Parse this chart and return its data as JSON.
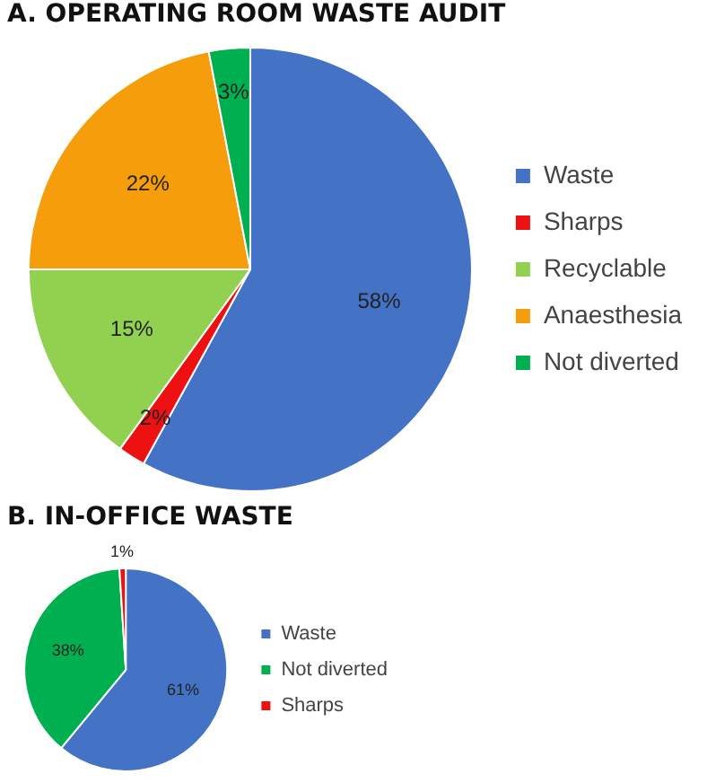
{
  "chart_data": [
    {
      "type": "pie",
      "title": "A. OPERATING ROOM WASTE AUDIT",
      "categories": [
        "Waste",
        "Sharps",
        "Recyclable",
        "Anaesthesia",
        "Not diverted"
      ],
      "values": [
        58,
        2,
        15,
        22,
        3
      ],
      "colors": [
        "#4472c4",
        "#ee1111",
        "#92d050",
        "#f59d0a",
        "#00b050"
      ],
      "value_labels": [
        "58%",
        "2%",
        "15%",
        "22%",
        "3%"
      ],
      "legend": "right"
    },
    {
      "type": "pie",
      "title": "B.  IN-OFFICE WASTE",
      "categories": [
        "Waste",
        "Not diverted",
        "Sharps"
      ],
      "values": [
        61,
        38,
        1
      ],
      "colors": [
        "#4472c4",
        "#00b050",
        "#ee1111"
      ],
      "value_labels": [
        "61%",
        "38%",
        "1%"
      ],
      "legend": "right"
    }
  ]
}
